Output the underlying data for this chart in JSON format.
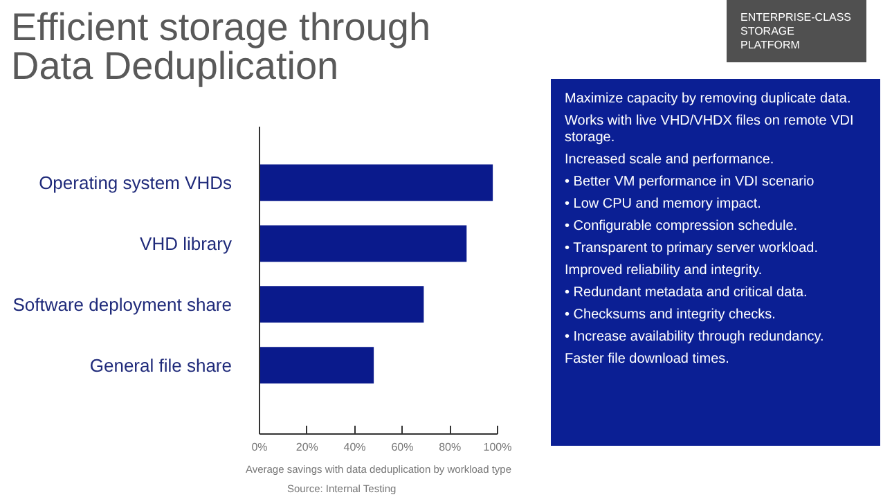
{
  "chart_data": [
    {
      "type": "bar",
      "title": "Efficient storage through\nData Deduplication",
      "orientation": "horizontal",
      "categories": [
        "Operating system VHDs",
        "VHD library",
        "Software deployment share",
        "General file share"
      ],
      "values": [
        98,
        87,
        69,
        48
      ],
      "color": "#0a1a8c",
      "xlim": [
        0,
        100
      ],
      "xticks": [
        {
          "value": 0,
          "label": "0%"
        },
        {
          "value": 20,
          "label": "20%"
        },
        {
          "value": 40,
          "label": "40%"
        },
        {
          "value": 60,
          "label": "60%"
        },
        {
          "value": 80,
          "label": "80%"
        },
        {
          "value": 100,
          "label": "100%"
        }
      ],
      "xlabel": "Average savings with data deduplication by workload type",
      "grid": false,
      "annotations": [
        "Source: Internal Testing"
      ]
    },
    {
      "type": "other",
      "annotations": [
        "Maximize capacity by removing duplicate data.",
        "Works with live VHD/VHDX files on remote VDI storage.",
        "Increased scale and performance.",
        "• Better VM performance in VDI scenario",
        "• Low CPU and memory impact.",
        "• Configurable compression schedule.",
        "• Transparent to primary server workload.",
        "Improved reliability and integrity.",
        "• Redundant metadata and critical data.",
        "• Checksums and integrity checks.",
        "• Increase availability through redundancy.",
        "Faster file download times."
      ]
    },
    {
      "type": "other",
      "annotations": [
        "ENTERPRISE-CLASS STORAGE PLATFORM"
      ]
    }
  ]
}
